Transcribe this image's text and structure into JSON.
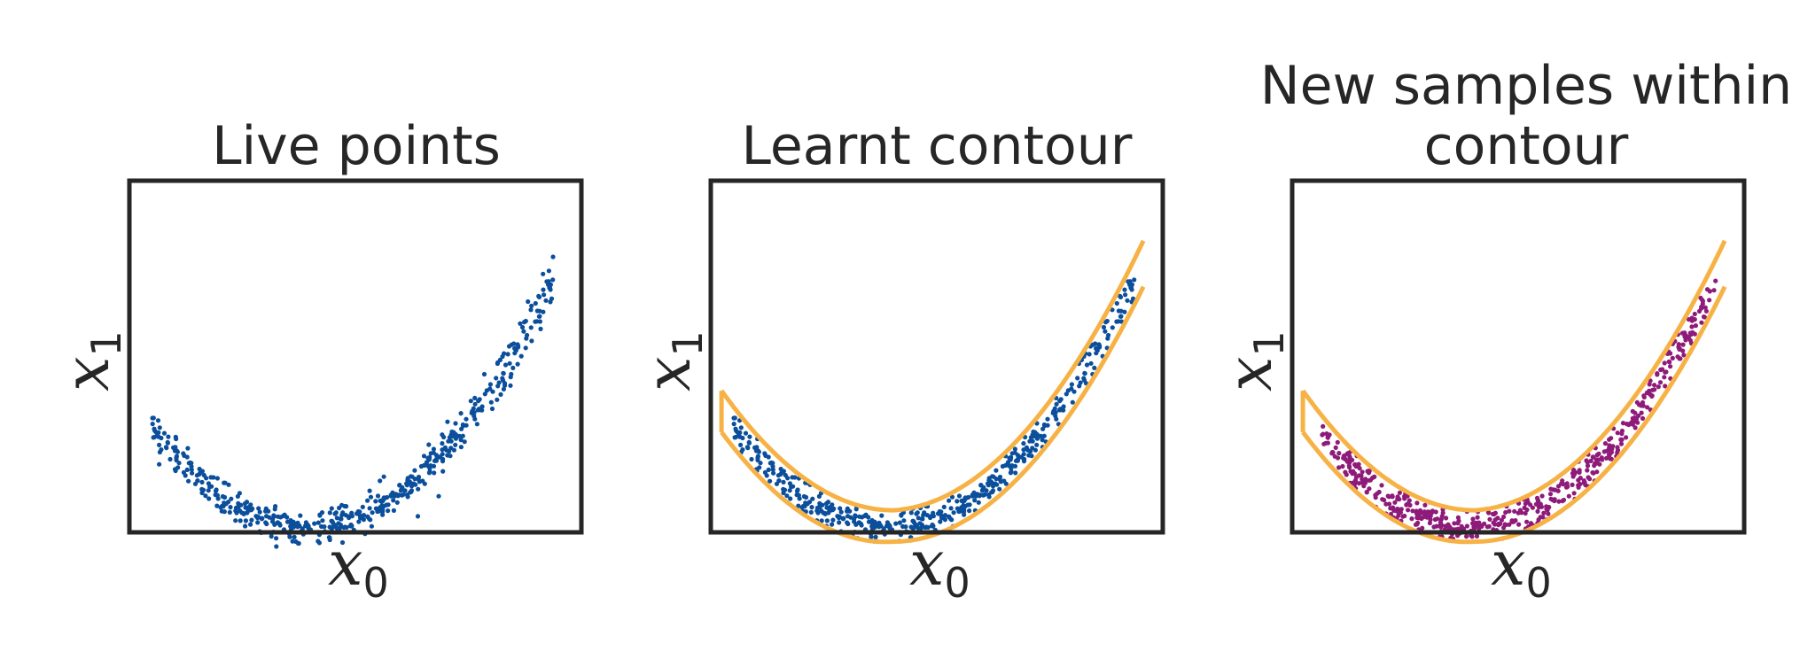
{
  "colors": {
    "live": "#0b4f9c",
    "new": "#8e1a79",
    "contour": "#f7b246",
    "axes": "#262626"
  },
  "chart_data": [
    {
      "type": "scatter",
      "title": "Live points",
      "xlabel": "x",
      "xlabel_sub": "0",
      "ylabel": "x",
      "ylabel_sub": "1",
      "grid": false,
      "ticks": false,
      "xlim": [
        -1.05,
        1.05
      ],
      "ylim": [
        -0.06,
        1.62
      ],
      "series": [
        {
          "kind": "points",
          "color_key": "live",
          "description_values": {
            "distribution": "noisy parabola band",
            "n": 500,
            "x_range": [
              -0.95,
              0.92
            ],
            "center_curve": "y = 0.0 + 0.9*(x+0.22)^2 - 0.05 + noise"
          }
        }
      ]
    },
    {
      "type": "scatter",
      "title": "Learnt contour",
      "xlabel": "x",
      "xlabel_sub": "0",
      "ylabel": "x",
      "ylabel_sub": "1",
      "grid": false,
      "ticks": false,
      "xlim": [
        -1.05,
        1.05
      ],
      "ylim": [
        -0.06,
        1.62
      ],
      "series": [
        {
          "kind": "points",
          "color_key": "live"
        },
        {
          "kind": "contour",
          "color_key": "contour"
        }
      ]
    },
    {
      "type": "scatter",
      "title_lines": [
        "New samples within",
        "contour"
      ],
      "xlabel": "x",
      "xlabel_sub": "0",
      "ylabel": "x",
      "ylabel_sub": "1",
      "grid": false,
      "ticks": false,
      "xlim": [
        -1.05,
        1.05
      ],
      "ylim": [
        -0.06,
        1.62
      ],
      "series": [
        {
          "kind": "points",
          "color_key": "new"
        },
        {
          "kind": "contour",
          "color_key": "contour"
        }
      ]
    }
  ]
}
